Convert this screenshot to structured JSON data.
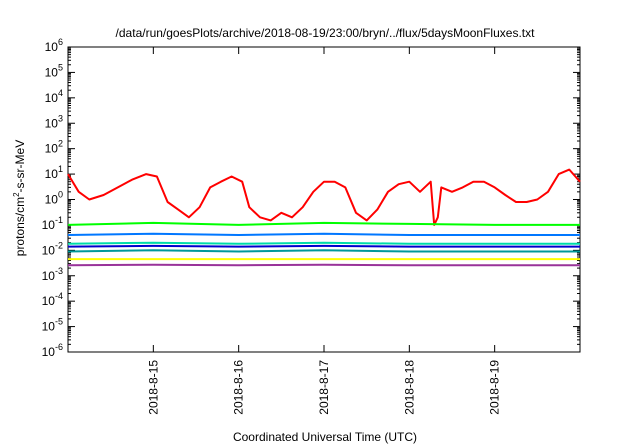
{
  "chart_data": {
    "type": "line",
    "title": "/data/run/goesPlots/archive/2018-08-19/23:00/bryn/../flux/5daysMoonFluxes.txt",
    "xlabel": "Coordinated Universal Time (UTC)",
    "ylabel": {
      "prefix": "protons/cm",
      "sup": "2",
      "suffix": "-s-sr-MeV"
    },
    "yscale": "log",
    "ylim": [
      1e-06,
      1000000.0
    ],
    "y_ticks": [
      {
        "exp": -6,
        "base": "10",
        "sup": "-6"
      },
      {
        "exp": -5,
        "base": "10",
        "sup": "-5"
      },
      {
        "exp": -4,
        "base": "10",
        "sup": "-4"
      },
      {
        "exp": -3,
        "base": "10",
        "sup": "-3"
      },
      {
        "exp": -2,
        "base": "10",
        "sup": "-2"
      },
      {
        "exp": -1,
        "base": "10",
        "sup": "-1"
      },
      {
        "exp": 0,
        "base": "10",
        "sup": "0"
      },
      {
        "exp": 1,
        "base": "10",
        "sup": "1"
      },
      {
        "exp": 2,
        "base": "10",
        "sup": "2"
      },
      {
        "exp": 3,
        "base": "10",
        "sup": "3"
      },
      {
        "exp": 4,
        "base": "10",
        "sup": "4"
      },
      {
        "exp": 5,
        "base": "10",
        "sup": "5"
      },
      {
        "exp": 6,
        "base": "10",
        "sup": "6"
      }
    ],
    "xlim": [
      "2018-08-14T00:00",
      "2018-08-20T00:00"
    ],
    "x_ticks": [
      {
        "date": "2018-08-15T00:00",
        "label": "2018-8-15"
      },
      {
        "date": "2018-08-16T00:00",
        "label": "2018-8-16"
      },
      {
        "date": "2018-08-17T00:00",
        "label": "2018-8-17"
      },
      {
        "date": "2018-08-18T00:00",
        "label": "2018-8-18"
      },
      {
        "date": "2018-08-19T00:00",
        "label": "2018-8-19"
      }
    ],
    "grid": false,
    "legend": "none",
    "series": [
      {
        "color": "#ff0000",
        "x": [
          "2018-08-14T00:00",
          "2018-08-14T03:00",
          "2018-08-14T06:00",
          "2018-08-14T10:00",
          "2018-08-14T14:00",
          "2018-08-14T18:00",
          "2018-08-14T22:00",
          "2018-08-15T01:00",
          "2018-08-15T04:00",
          "2018-08-15T07:00",
          "2018-08-15T10:00",
          "2018-08-15T13:00",
          "2018-08-15T16:00",
          "2018-08-15T19:00",
          "2018-08-15T22:00",
          "2018-08-16T01:00",
          "2018-08-16T03:00",
          "2018-08-16T06:00",
          "2018-08-16T09:00",
          "2018-08-16T12:00",
          "2018-08-16T15:00",
          "2018-08-16T18:00",
          "2018-08-16T21:00",
          "2018-08-17T00:00",
          "2018-08-17T03:00",
          "2018-08-17T06:00",
          "2018-08-17T09:00",
          "2018-08-17T12:00",
          "2018-08-17T15:00",
          "2018-08-17T18:00",
          "2018-08-17T21:00",
          "2018-08-18T00:00",
          "2018-08-18T03:00",
          "2018-08-18T06:00",
          "2018-08-18T07:00",
          "2018-08-18T08:00",
          "2018-08-18T09:00",
          "2018-08-18T12:00",
          "2018-08-18T15:00",
          "2018-08-18T18:00",
          "2018-08-18T21:00",
          "2018-08-19T00:00",
          "2018-08-19T03:00",
          "2018-08-19T06:00",
          "2018-08-19T09:00",
          "2018-08-19T12:00",
          "2018-08-19T15:00",
          "2018-08-19T18:00",
          "2018-08-19T21:00",
          "2018-08-20T00:00"
        ],
        "y": [
          10,
          2,
          1,
          1.5,
          3,
          6,
          10,
          8,
          0.8,
          0.4,
          0.2,
          0.5,
          3,
          5,
          8,
          5,
          0.5,
          0.2,
          0.15,
          0.3,
          0.2,
          0.5,
          2,
          5,
          5,
          3,
          0.3,
          0.15,
          0.4,
          2,
          4,
          5,
          2,
          5,
          0.1,
          0.2,
          3,
          2,
          3,
          5,
          5,
          3,
          1.5,
          0.8,
          0.8,
          1,
          2,
          10,
          15,
          5
        ]
      },
      {
        "color": "#00ff00",
        "x": [
          "2018-08-14T00:00",
          "2018-08-15T00:00",
          "2018-08-16T00:00",
          "2018-08-17T00:00",
          "2018-08-18T00:00",
          "2018-08-19T00:00",
          "2018-08-20T00:00"
        ],
        "y": [
          0.1,
          0.12,
          0.1,
          0.12,
          0.11,
          0.1,
          0.1
        ]
      },
      {
        "color": "#0077ff",
        "x": [
          "2018-08-14T00:00",
          "2018-08-15T00:00",
          "2018-08-16T00:00",
          "2018-08-17T00:00",
          "2018-08-18T00:00",
          "2018-08-19T00:00",
          "2018-08-20T00:00"
        ],
        "y": [
          0.04,
          0.045,
          0.04,
          0.045,
          0.04,
          0.04,
          0.04
        ]
      },
      {
        "color": "#00ddaa",
        "x": [
          "2018-08-14T00:00",
          "2018-08-15T00:00",
          "2018-08-16T00:00",
          "2018-08-17T00:00",
          "2018-08-18T00:00",
          "2018-08-19T00:00",
          "2018-08-20T00:00"
        ],
        "y": [
          0.018,
          0.02,
          0.018,
          0.02,
          0.018,
          0.018,
          0.018
        ]
      },
      {
        "color": "#0000cc",
        "x": [
          "2018-08-14T00:00",
          "2018-08-15T00:00",
          "2018-08-16T00:00",
          "2018-08-17T00:00",
          "2018-08-18T00:00",
          "2018-08-19T00:00",
          "2018-08-20T00:00"
        ],
        "y": [
          0.014,
          0.015,
          0.014,
          0.015,
          0.014,
          0.014,
          0.014
        ]
      },
      {
        "color": "#009999",
        "x": [
          "2018-08-14T00:00",
          "2018-08-15T00:00",
          "2018-08-16T00:00",
          "2018-08-17T00:00",
          "2018-08-18T00:00",
          "2018-08-19T00:00",
          "2018-08-20T00:00"
        ],
        "y": [
          0.009,
          0.01,
          0.009,
          0.01,
          0.009,
          0.009,
          0.009
        ]
      },
      {
        "color": "#ffff00",
        "x": [
          "2018-08-14T00:00",
          "2018-08-15T00:00",
          "2018-08-16T00:00",
          "2018-08-17T00:00",
          "2018-08-18T00:00",
          "2018-08-19T00:00",
          "2018-08-20T00:00"
        ],
        "y": [
          0.0045,
          0.0045,
          0.0045,
          0.0045,
          0.0045,
          0.0045,
          0.0045
        ]
      },
      {
        "color": "#993399",
        "x": [
          "2018-08-14T00:00",
          "2018-08-15T00:00",
          "2018-08-16T00:00",
          "2018-08-17T00:00",
          "2018-08-18T00:00",
          "2018-08-19T00:00",
          "2018-08-20T00:00"
        ],
        "y": [
          0.0026,
          0.0027,
          0.0026,
          0.0027,
          0.0026,
          0.0026,
          0.0026
        ]
      }
    ]
  }
}
